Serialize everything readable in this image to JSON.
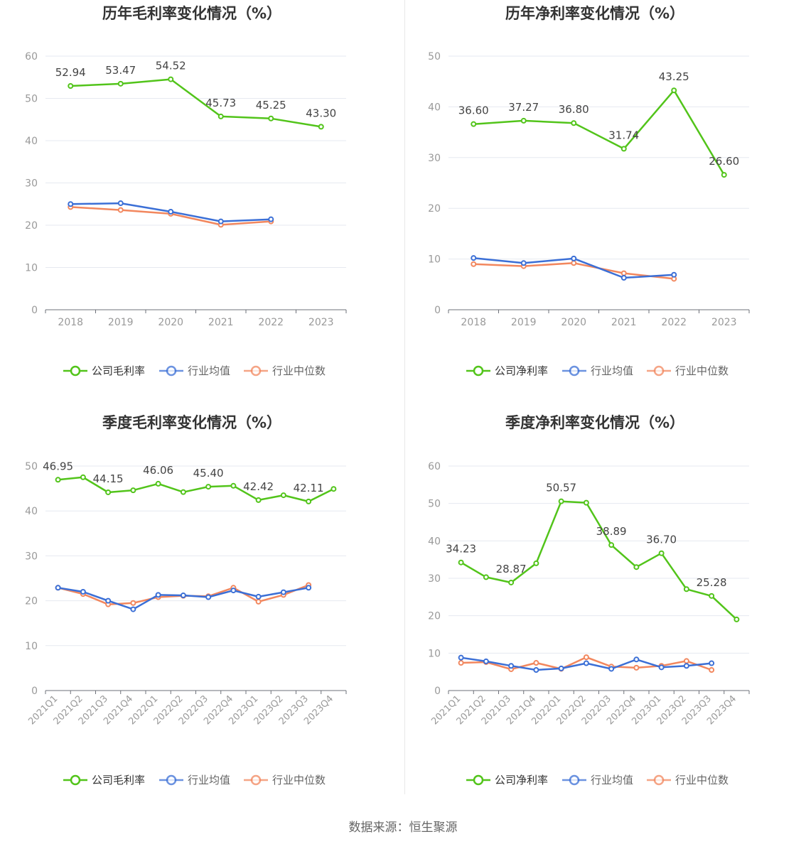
{
  "source_text": "数据来源：恒生聚源",
  "colors": {
    "company": "#52c41a",
    "avg": "#3b6fd6",
    "median": "#f2875e",
    "grid": "#e6e9f0",
    "axis": "#6e7079",
    "text": "#999999"
  },
  "chart_data": [
    {
      "type": "line",
      "title": "历年毛利率变化情况（%）",
      "categories": [
        "2018",
        "2019",
        "2020",
        "2021",
        "2022",
        "2023"
      ],
      "ylim": [
        0,
        60
      ],
      "yticks": [
        0,
        10,
        20,
        30,
        40,
        50,
        60
      ],
      "rotate_labels": false,
      "series": [
        {
          "name": "公司毛利率",
          "color": "#52c41a",
          "values": [
            52.94,
            53.47,
            54.52,
            45.73,
            45.25,
            43.3
          ],
          "labels": [
            "52.94",
            "53.47",
            "54.52",
            "45.73",
            "45.25",
            "43.30"
          ]
        },
        {
          "name": "行业均值",
          "color": "#3b6fd6",
          "values": [
            25.0,
            25.2,
            23.2,
            20.9,
            21.4,
            null
          ]
        },
        {
          "name": "行业中位数",
          "color": "#f2875e",
          "values": [
            24.3,
            23.6,
            22.7,
            20.1,
            20.9,
            null
          ]
        }
      ]
    },
    {
      "type": "line",
      "title": "历年净利率变化情况（%）",
      "categories": [
        "2018",
        "2019",
        "2020",
        "2021",
        "2022",
        "2023"
      ],
      "ylim": [
        0,
        50
      ],
      "yticks": [
        0,
        10,
        20,
        30,
        40,
        50
      ],
      "rotate_labels": false,
      "series": [
        {
          "name": "公司净利率",
          "color": "#52c41a",
          "values": [
            36.6,
            37.27,
            36.8,
            31.74,
            43.25,
            26.6
          ],
          "labels": [
            "36.60",
            "37.27",
            "36.80",
            "31.74",
            "43.25",
            "26.60"
          ]
        },
        {
          "name": "行业均值",
          "color": "#3b6fd6",
          "values": [
            10.2,
            9.2,
            10.1,
            6.3,
            6.9,
            null
          ]
        },
        {
          "name": "行业中位数",
          "color": "#f2875e",
          "values": [
            9.0,
            8.6,
            9.2,
            7.2,
            6.1,
            null
          ]
        }
      ]
    },
    {
      "type": "line",
      "title": "季度毛利率变化情况（%）",
      "categories": [
        "2021Q1",
        "2021Q2",
        "2021Q3",
        "2021Q4",
        "2022Q1",
        "2022Q2",
        "2022Q3",
        "2022Q4",
        "2023Q1",
        "2023Q2",
        "2023Q3",
        "2023Q4"
      ],
      "ylim": [
        0,
        50
      ],
      "yticks": [
        0,
        10,
        20,
        30,
        40,
        50
      ],
      "rotate_labels": true,
      "series": [
        {
          "name": "公司毛利率",
          "color": "#52c41a",
          "values": [
            46.95,
            47.5,
            44.15,
            44.6,
            46.06,
            44.2,
            45.4,
            45.6,
            42.42,
            43.5,
            42.11,
            44.9
          ],
          "labels": [
            "46.95",
            "",
            "44.15",
            "",
            "46.06",
            "",
            "45.40",
            "",
            "42.42",
            "",
            "42.11",
            ""
          ]
        },
        {
          "name": "行业均值",
          "color": "#3b6fd6",
          "values": [
            22.9,
            22.0,
            20.0,
            18.1,
            21.3,
            21.2,
            20.8,
            22.3,
            20.9,
            21.9,
            22.9,
            null
          ]
        },
        {
          "name": "行业中位数",
          "color": "#f2875e",
          "values": [
            22.9,
            21.5,
            19.2,
            19.5,
            20.8,
            21.1,
            21.0,
            22.9,
            19.8,
            21.3,
            23.5,
            null
          ]
        }
      ]
    },
    {
      "type": "line",
      "title": "季度净利率变化情况（%）",
      "categories": [
        "2021Q1",
        "2021Q2",
        "2021Q3",
        "2021Q4",
        "2022Q1",
        "2022Q2",
        "2022Q3",
        "2022Q4",
        "2023Q1",
        "2023Q2",
        "2023Q3",
        "2023Q4"
      ],
      "ylim": [
        0,
        60
      ],
      "yticks": [
        0,
        10,
        20,
        30,
        40,
        50,
        60
      ],
      "rotate_labels": true,
      "series": [
        {
          "name": "公司净利率",
          "color": "#52c41a",
          "values": [
            34.23,
            30.3,
            28.87,
            34.0,
            50.57,
            50.2,
            38.89,
            33.0,
            36.7,
            27.1,
            25.28,
            19.0
          ],
          "labels": [
            "34.23",
            "",
            "28.87",
            "",
            "50.57",
            "",
            "38.89",
            "",
            "36.70",
            "",
            "25.28",
            ""
          ]
        },
        {
          "name": "行业均值",
          "color": "#3b6fd6",
          "values": [
            8.8,
            7.8,
            6.6,
            5.5,
            5.9,
            7.3,
            5.8,
            8.3,
            6.2,
            6.6,
            7.3,
            null
          ]
        },
        {
          "name": "行业中位数",
          "color": "#f2875e",
          "values": [
            7.4,
            7.6,
            5.7,
            7.4,
            5.8,
            8.9,
            6.4,
            6.1,
            6.6,
            7.9,
            5.5,
            null
          ]
        }
      ]
    }
  ]
}
